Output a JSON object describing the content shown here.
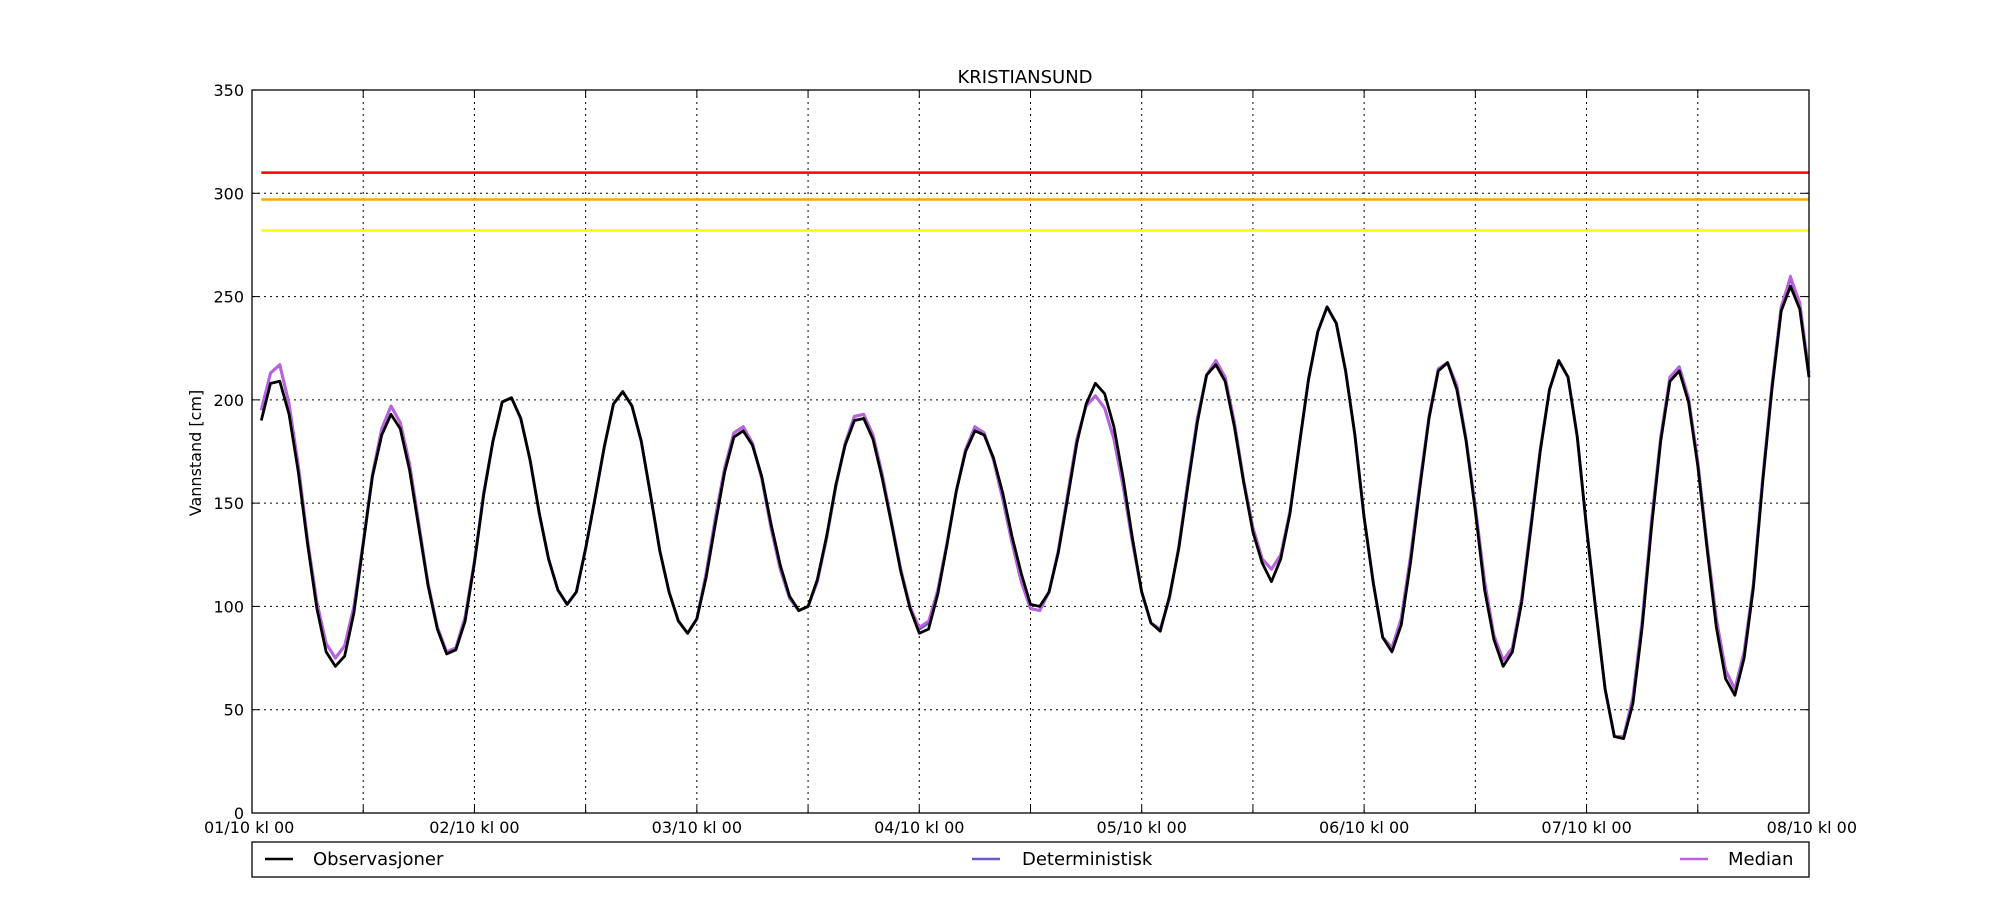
{
  "chart_data": {
    "type": "line",
    "title": "KRISTIANSUND",
    "ylabel": "Vannstand [cm]",
    "xlabel": "",
    "xlim": [
      0,
      168
    ],
    "ylim": [
      0,
      350
    ],
    "grid": true,
    "x_tick_positions": [
      0,
      24,
      48,
      72,
      96,
      120,
      144,
      168
    ],
    "x_tick_labels": [
      "01/10 kl 00",
      "02/10 kl 00",
      "03/10 kl 00",
      "04/10 kl 00",
      "05/10 kl 00",
      "06/10 kl 00",
      "07/10 kl 00",
      "08/10 kl 00"
    ],
    "x_minor_ticks": [
      12,
      36,
      60,
      84,
      108,
      132,
      156
    ],
    "y_ticks": [
      0,
      50,
      100,
      150,
      200,
      250,
      300,
      350
    ],
    "legend_position": "bottom",
    "thresholds": [
      {
        "value": 310,
        "color": "#ff0000"
      },
      {
        "value": 297,
        "color": "#ffa500"
      },
      {
        "value": 282,
        "color": "#ffff00"
      }
    ],
    "series": [
      {
        "name": "Observasjoner",
        "color": "#000000",
        "x": [
          1,
          2,
          3,
          4,
          5,
          6,
          7,
          8,
          9,
          10,
          11,
          12,
          13,
          14,
          15,
          16,
          17,
          18,
          19,
          20,
          21,
          22,
          23,
          24,
          25,
          26,
          27,
          28,
          29,
          30,
          31,
          32,
          33,
          34,
          35,
          36,
          37,
          38,
          39,
          40,
          41,
          42,
          43,
          44,
          45,
          46,
          47,
          48,
          49,
          50,
          51,
          52,
          53,
          54,
          55,
          56,
          57,
          58,
          59,
          60,
          61,
          62,
          63,
          64,
          65,
          66,
          67,
          68,
          69,
          70,
          71,
          72,
          73,
          74,
          75,
          76,
          77,
          78,
          79,
          80,
          81,
          82,
          83,
          84,
          85,
          86,
          87,
          88,
          89,
          90,
          91,
          92,
          93,
          94,
          95,
          96,
          97,
          98,
          99,
          100,
          101,
          102,
          103,
          104,
          105,
          106,
          107,
          108,
          109,
          110,
          111,
          112,
          113,
          114,
          115,
          116,
          117,
          118,
          119,
          120,
          121,
          122,
          123,
          124,
          125,
          126,
          127,
          128,
          129,
          130,
          131,
          132,
          133,
          134,
          135,
          136,
          137,
          138,
          139,
          140,
          141,
          142,
          143,
          144,
          145,
          146,
          147,
          148,
          149,
          150,
          151,
          152,
          153,
          154,
          155,
          156,
          157,
          158,
          159,
          160,
          161,
          162,
          163,
          164,
          165,
          166,
          167,
          168
        ],
        "y": [
          190,
          208,
          209,
          193,
          165,
          130,
          99,
          78,
          71,
          76,
          97,
          130,
          163,
          183,
          193,
          186,
          166,
          138,
          110,
          89,
          77,
          79,
          93,
          121,
          154,
          180,
          199,
          201,
          191,
          171,
          145,
          123,
          108,
          101,
          107,
          128,
          152,
          177,
          198,
          204,
          197,
          180,
          154,
          127,
          107,
          93,
          87,
          94,
          114,
          140,
          165,
          182,
          185,
          178,
          163,
          140,
          120,
          105,
          98,
          100,
          113,
          134,
          159,
          178,
          190,
          191,
          181,
          162,
          140,
          117,
          99,
          87,
          89,
          106,
          130,
          156,
          175,
          185,
          183,
          172,
          155,
          134,
          116,
          101,
          100,
          107,
          126,
          152,
          179,
          198,
          208,
          203,
          187,
          162,
          133,
          107,
          92,
          88,
          105,
          128,
          159,
          189,
          212,
          217,
          209,
          187,
          160,
          136,
          121,
          112,
          123,
          145,
          178,
          210,
          233,
          245,
          237,
          214,
          183,
          143,
          111,
          85,
          78,
          91,
          121,
          157,
          191,
          214,
          218,
          205,
          180,
          146,
          108,
          84,
          71,
          78,
          102,
          138,
          175,
          205,
          219,
          211,
          182,
          138,
          98,
          60,
          37,
          36,
          53,
          90,
          138,
          180,
          209,
          214,
          199,
          168,
          128,
          90,
          65,
          57,
          75,
          109,
          160,
          205,
          243,
          255,
          244,
          211
        ]
      },
      {
        "name": "Deterministisk",
        "color": "#6a5acd",
        "x": [
          1,
          2,
          3,
          4,
          5,
          6,
          7,
          8,
          9,
          10,
          11,
          12,
          13,
          14,
          15,
          16,
          17,
          18,
          19,
          20,
          21,
          22,
          23,
          24,
          25,
          26,
          27,
          28,
          29,
          30,
          31,
          32,
          33,
          34,
          35,
          36,
          37,
          38,
          39,
          40,
          41,
          42,
          43,
          44,
          45,
          46,
          47,
          48,
          49,
          50,
          51,
          52,
          53,
          54,
          55,
          56,
          57,
          58,
          59,
          60,
          61,
          62,
          63,
          64,
          65,
          66,
          67,
          68,
          69,
          70,
          71,
          72,
          73,
          74,
          75,
          76,
          77,
          78,
          79,
          80,
          81,
          82,
          83,
          84,
          85,
          86,
          87,
          88,
          89,
          90,
          91,
          92,
          93,
          94,
          95,
          96,
          97,
          98,
          99,
          100,
          101,
          102,
          103,
          104,
          105,
          106,
          107,
          108,
          109,
          110,
          111,
          112,
          113,
          114,
          115,
          116,
          117,
          118,
          119,
          120,
          121,
          122,
          123,
          124,
          125,
          126,
          127,
          128,
          129,
          130,
          131,
          132,
          133,
          134,
          135,
          136,
          137,
          138,
          139,
          140,
          141,
          142,
          143,
          144,
          145,
          146,
          147,
          148,
          149,
          150,
          151,
          152,
          153,
          154,
          155,
          156,
          157,
          158,
          159,
          160,
          161,
          162,
          163,
          164,
          165,
          166,
          167,
          168
        ],
        "y": [
          195,
          213,
          217,
          198,
          168,
          132,
          102,
          82,
          75,
          81,
          100,
          131,
          164,
          186,
          197,
          189,
          169,
          140,
          111,
          90,
          78,
          80,
          95,
          122,
          155,
          180,
          199,
          201,
          191,
          171,
          145,
          123,
          108,
          101,
          107,
          128,
          152,
          177,
          198,
          204,
          197,
          180,
          154,
          127,
          107,
          93,
          87,
          94,
          116,
          143,
          167,
          184,
          187,
          179,
          162,
          138,
          118,
          104,
          98,
          100,
          112,
          133,
          158,
          179,
          192,
          193,
          183,
          164,
          141,
          118,
          100,
          89,
          92,
          108,
          131,
          156,
          176,
          187,
          184,
          171,
          152,
          131,
          112,
          99,
          98,
          107,
          127,
          154,
          181,
          197,
          202,
          196,
          181,
          158,
          131,
          107,
          92,
          89,
          104,
          129,
          161,
          191,
          212,
          219,
          211,
          189,
          161,
          138,
          123,
          118,
          125,
          146,
          178,
          210,
          233,
          245,
          237,
          214,
          183,
          143,
          111,
          85,
          80,
          94,
          124,
          159,
          192,
          215,
          218,
          207,
          181,
          148,
          112,
          86,
          74,
          80,
          104,
          140,
          176,
          205,
          219,
          211,
          182,
          138,
          98,
          60,
          37,
          37,
          56,
          93,
          141,
          182,
          211,
          216,
          201,
          170,
          130,
          94,
          69,
          60,
          78,
          111,
          162,
          207,
          245,
          259,
          247,
          213
        ]
      },
      {
        "name": "Median",
        "color": "#c060e0",
        "x": [
          1,
          2,
          3,
          4,
          5,
          6,
          7,
          8,
          9,
          10,
          11,
          12,
          13,
          14,
          15,
          16,
          17,
          18,
          19,
          20,
          21,
          22,
          23,
          24,
          25,
          26,
          27,
          28,
          29,
          30,
          31,
          32,
          33,
          34,
          35,
          36,
          37,
          38,
          39,
          40,
          41,
          42,
          43,
          44,
          45,
          46,
          47,
          48,
          49,
          50,
          51,
          52,
          53,
          54,
          55,
          56,
          57,
          58,
          59,
          60,
          61,
          62,
          63,
          64,
          65,
          66,
          67,
          68,
          69,
          70,
          71,
          72,
          73,
          74,
          75,
          76,
          77,
          78,
          79,
          80,
          81,
          82,
          83,
          84,
          85,
          86,
          87,
          88,
          89,
          90,
          91,
          92,
          93,
          94,
          95,
          96,
          97,
          98,
          99,
          100,
          101,
          102,
          103,
          104,
          105,
          106,
          107,
          108,
          109,
          110,
          111,
          112,
          113,
          114,
          115,
          116,
          117,
          118,
          119,
          120,
          121,
          122,
          123,
          124,
          125,
          126,
          127,
          128,
          129,
          130,
          131,
          132,
          133,
          134,
          135,
          136,
          137,
          138,
          139,
          140,
          141,
          142,
          143,
          144,
          145,
          146,
          147,
          148,
          149,
          150,
          151,
          152,
          153,
          154,
          155,
          156,
          157,
          158,
          159,
          160,
          161,
          162,
          163,
          164,
          165,
          166,
          167,
          168
        ],
        "y": [
          195,
          213,
          217,
          198,
          168,
          132,
          102,
          82,
          75,
          81,
          100,
          131,
          164,
          186,
          197,
          189,
          169,
          140,
          111,
          90,
          78,
          80,
          95,
          122,
          155,
          180,
          199,
          201,
          191,
          171,
          145,
          123,
          108,
          101,
          107,
          128,
          152,
          177,
          198,
          204,
          197,
          180,
          154,
          127,
          107,
          93,
          87,
          94,
          116,
          143,
          167,
          184,
          187,
          179,
          162,
          138,
          118,
          104,
          98,
          100,
          112,
          133,
          158,
          179,
          192,
          193,
          183,
          164,
          141,
          118,
          100,
          90,
          93,
          108,
          131,
          156,
          176,
          187,
          184,
          171,
          152,
          131,
          112,
          99,
          98,
          107,
          127,
          154,
          181,
          197,
          202,
          196,
          181,
          158,
          131,
          107,
          92,
          89,
          104,
          129,
          161,
          191,
          212,
          219,
          211,
          189,
          161,
          138,
          123,
          118,
          125,
          146,
          178,
          210,
          233,
          245,
          237,
          214,
          183,
          143,
          111,
          85,
          80,
          94,
          124,
          159,
          192,
          215,
          218,
          207,
          181,
          148,
          112,
          86,
          74,
          80,
          104,
          140,
          176,
          205,
          219,
          211,
          182,
          138,
          98,
          60,
          37,
          37,
          56,
          93,
          141,
          182,
          211,
          216,
          201,
          170,
          130,
          94,
          69,
          60,
          78,
          111,
          162,
          207,
          245,
          260,
          247,
          213
        ]
      }
    ]
  }
}
